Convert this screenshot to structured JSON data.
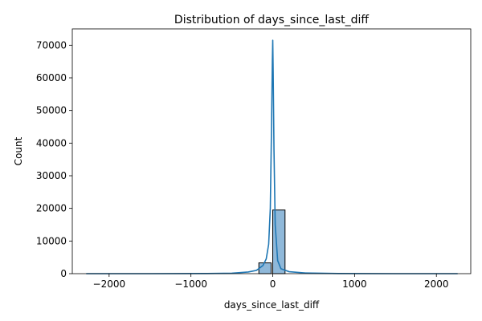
{
  "chart_data": {
    "type": "bar",
    "title": "Distribution of days_since_last_diff",
    "xlabel": "days_since_last_diff",
    "ylabel": "Count",
    "xlim": [
      -2450,
      2420
    ],
    "ylim": [
      0,
      75000
    ],
    "xticks": [
      -2000,
      -1000,
      0,
      1000,
      2000
    ],
    "xtick_labels": [
      "−2000",
      "−1000",
      "0",
      "1000",
      "2000"
    ],
    "yticks": [
      0,
      10000,
      20000,
      30000,
      40000,
      50000,
      60000,
      70000
    ],
    "yticks_labels": [
      "0",
      "10000",
      "20000",
      "30000",
      "40000",
      "50000",
      "60000",
      "70000"
    ],
    "grid": false,
    "bar_color": "#8fb8d9",
    "bar_edge_color": "#000000",
    "kde_color": "#1f77b4",
    "bins": [
      {
        "x0": -170,
        "x1": -20,
        "count": 3300
      },
      {
        "x0": 0,
        "x1": 150,
        "count": 19500
      }
    ],
    "kde": {
      "x": [
        -2280,
        -1500,
        -800,
        -500,
        -300,
        -200,
        -120,
        -80,
        -50,
        -30,
        -15,
        -5,
        0,
        5,
        15,
        30,
        60,
        100,
        200,
        400,
        800,
        1500,
        2260
      ],
      "y": [
        0,
        0,
        40,
        150,
        500,
        1000,
        2500,
        4500,
        9000,
        20000,
        45000,
        65000,
        71500,
        62000,
        38000,
        15000,
        4000,
        1500,
        600,
        200,
        40,
        0,
        0
      ]
    }
  }
}
